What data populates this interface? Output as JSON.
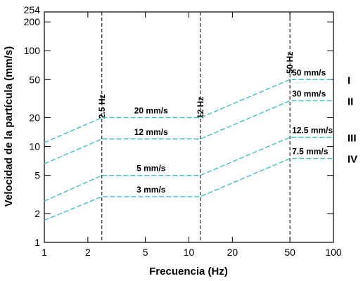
{
  "chart_data": {
    "type": "line",
    "xlabel": "Frecuencia (Hz)",
    "ylabel": "Velocidad de la partícula (mm/s)",
    "xscale": "log",
    "yscale": "log",
    "xlim": [
      1,
      100
    ],
    "ylim": [
      1,
      254
    ],
    "x_ticks": [
      1,
      2,
      5,
      10,
      20,
      50,
      100
    ],
    "y_ticks": [
      1,
      2,
      5,
      10,
      20,
      50,
      100,
      200,
      254
    ],
    "grid": false,
    "line_color": "#3fc1c9",
    "series": [
      {
        "name": "I",
        "x": [
          1,
          2.5,
          12,
          50,
          100
        ],
        "y": [
          11,
          20,
          20,
          50,
          50
        ],
        "labels": [
          "20 mm/s",
          "50 mm/s"
        ]
      },
      {
        "name": "II",
        "x": [
          1,
          2.5,
          12,
          50,
          100
        ],
        "y": [
          6.6,
          12,
          12,
          30,
          30
        ],
        "labels": [
          "12 mm/s",
          "30 mm/s"
        ]
      },
      {
        "name": "III",
        "x": [
          1,
          2.5,
          12,
          50,
          100
        ],
        "y": [
          2.7,
          5,
          5,
          12.5,
          12.5
        ],
        "labels": [
          "5 mm/s",
          "12.5 mm/s"
        ]
      },
      {
        "name": "IV",
        "x": [
          1,
          2.5,
          12,
          50,
          100
        ],
        "y": [
          1.7,
          3,
          3,
          7.5,
          7.5
        ],
        "labels": [
          "3 mm/s",
          "7.5 mm/s"
        ]
      }
    ],
    "vertical_lines": [
      {
        "x": 2.5,
        "label": "2.5 Hz"
      },
      {
        "x": 12,
        "label": "12 Hz"
      },
      {
        "x": 50,
        "label": "50 Hz"
      }
    ]
  }
}
